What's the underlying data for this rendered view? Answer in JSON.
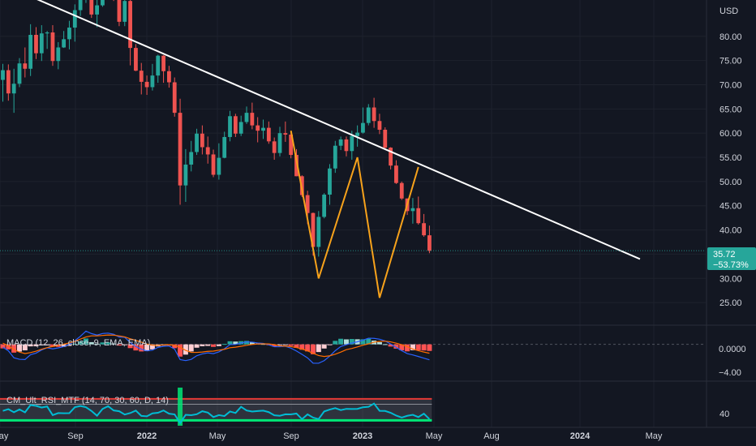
{
  "chart_data": {
    "type": "candlestick",
    "currency_label": "USD",
    "y_ticks": [
      25,
      30,
      35,
      40,
      45,
      50,
      55,
      60,
      65,
      70,
      75,
      80
    ],
    "y_tick_labels": [
      "25.00",
      "30.00",
      "35.00",
      "40.00",
      "45.00",
      "50.00",
      "55.00",
      "60.00",
      "65.00",
      "70.00",
      "75.00",
      "80.00"
    ],
    "ylim": [
      20.5,
      87.5
    ],
    "x_ticks": [
      {
        "label": "May",
        "bold": false
      },
      {
        "label": "Sep",
        "bold": false
      },
      {
        "label": "2022",
        "bold": true
      },
      {
        "label": "May",
        "bold": false
      },
      {
        "label": "Sep",
        "bold": false
      },
      {
        "label": "2023",
        "bold": true
      },
      {
        "label": "May",
        "bold": false
      },
      {
        "label": "Aug",
        "bold": false
      },
      {
        "label": "2024",
        "bold": true
      },
      {
        "label": "May",
        "bold": false
      }
    ],
    "last_price": "35.72",
    "last_change": "−53.73%",
    "trendline": {
      "start": [
        0,
        90.7
      ],
      "end": [
        115,
        34.0
      ]
    },
    "pattern": [
      [
        52,
        60.5
      ],
      [
        57,
        30.0
      ],
      [
        64,
        55.0
      ],
      [
        68,
        26.0
      ],
      [
        75,
        53.0
      ]
    ],
    "candles": [
      [
        0,
        71.0,
        73.0,
        66.5,
        74.3
      ],
      [
        1,
        73.0,
        68.2,
        66.7,
        74.2
      ],
      [
        2,
        68.2,
        70.2,
        64.2,
        73.3
      ],
      [
        3,
        70.2,
        74.4,
        69.5,
        75.5
      ],
      [
        4,
        74.4,
        73.3,
        71.5,
        77.7
      ],
      [
        5,
        73.3,
        80.3,
        71.8,
        82.5
      ],
      [
        6,
        80.3,
        76.5,
        75.3,
        81.9
      ],
      [
        7,
        76.5,
        80.6,
        74.9,
        82.3
      ],
      [
        8,
        80.6,
        80.8,
        77.4,
        81.1
      ],
      [
        9,
        80.8,
        74.9,
        73.9,
        82.3
      ],
      [
        10,
        74.9,
        77.7,
        73.2,
        78.8
      ],
      [
        11,
        77.7,
        79.4,
        77.6,
        81.1
      ],
      [
        12,
        79.4,
        81.8,
        77.3,
        83.2
      ],
      [
        13,
        81.8,
        85.4,
        78.9,
        86.6
      ],
      [
        14,
        85.4,
        88.7,
        84.2,
        89.5
      ],
      [
        15,
        88.7,
        93.6,
        86.9,
        95.0
      ],
      [
        16,
        93.6,
        84.5,
        83.8,
        95.1
      ],
      [
        17,
        84.5,
        86.4,
        81.9,
        89.1
      ],
      [
        18,
        86.4,
        91.8,
        86.1,
        93.7
      ],
      [
        19,
        91.8,
        91.0,
        90.0,
        93.0
      ],
      [
        20,
        91.0,
        87.6,
        87.3,
        92.9
      ],
      [
        21,
        87.6,
        83.0,
        82.1,
        89.0
      ],
      [
        22,
        83.0,
        87.3,
        82.1,
        87.6
      ],
      [
        23,
        87.3,
        77.6,
        74.0,
        88.0
      ],
      [
        24,
        77.6,
        72.9,
        72.8,
        78.4
      ],
      [
        25,
        72.9,
        70.6,
        68.0,
        74.5
      ],
      [
        26,
        70.6,
        69.5,
        67.9,
        71.9
      ],
      [
        27,
        69.5,
        71.9,
        68.8,
        74.3
      ],
      [
        28,
        71.9,
        76.0,
        70.4,
        76.2
      ],
      [
        29,
        76.0,
        72.8,
        70.4,
        76.1
      ],
      [
        30,
        72.8,
        70.5,
        69.4,
        73.9
      ],
      [
        31,
        70.5,
        64.2,
        63.4,
        71.5
      ],
      [
        32,
        64.2,
        49.2,
        45.2,
        67.1
      ],
      [
        33,
        49.2,
        53.5,
        45.8,
        56.7
      ],
      [
        34,
        53.5,
        56.1,
        52.1,
        58.4
      ],
      [
        35,
        56.1,
        59.9,
        55.5,
        60.9
      ],
      [
        36,
        59.9,
        57.1,
        55.6,
        61.6
      ],
      [
        37,
        57.1,
        55.6,
        53.7,
        59.3
      ],
      [
        38,
        55.6,
        51.4,
        50.9,
        56.6
      ],
      [
        39,
        51.4,
        54.9,
        50.4,
        57.9
      ],
      [
        40,
        54.9,
        59.2,
        54.8,
        60.3
      ],
      [
        41,
        59.2,
        63.5,
        58.3,
        64.6
      ],
      [
        42,
        63.5,
        59.9,
        59.2,
        64.0
      ],
      [
        43,
        59.9,
        62.3,
        59.4,
        63.6
      ],
      [
        44,
        62.3,
        64.2,
        61.9,
        65.5
      ],
      [
        45,
        64.2,
        61.6,
        60.8,
        66.3
      ],
      [
        46,
        61.6,
        60.5,
        58.1,
        63.3
      ],
      [
        47,
        60.5,
        61.1,
        58.8,
        62.8
      ],
      [
        48,
        61.1,
        58.3,
        57.8,
        62.4
      ],
      [
        49,
        58.3,
        55.9,
        54.5,
        59.1
      ],
      [
        50,
        55.9,
        60.0,
        55.2,
        61.3
      ],
      [
        51,
        60.0,
        59.7,
        58.2,
        62.4
      ],
      [
        52,
        59.7,
        55.5,
        54.8,
        60.2
      ],
      [
        53,
        55.5,
        51.1,
        51.1,
        56.7
      ],
      [
        54,
        51.1,
        47.2,
        46.8,
        51.3
      ],
      [
        55,
        47.2,
        43.5,
        41.2,
        48.1
      ],
      [
        56,
        43.5,
        36.5,
        34.7,
        43.6
      ],
      [
        57,
        36.5,
        42.7,
        34.5,
        43.9
      ],
      [
        58,
        42.7,
        47.3,
        42.4,
        47.6
      ],
      [
        59,
        47.3,
        52.7,
        45.2,
        53.6
      ],
      [
        60,
        52.7,
        57.4,
        51.8,
        58.4
      ],
      [
        61,
        57.4,
        58.7,
        56.5,
        59.3
      ],
      [
        62,
        58.7,
        56.3,
        55.2,
        59.3
      ],
      [
        63,
        56.3,
        59.4,
        54.5,
        60.5
      ],
      [
        64,
        59.4,
        60.1,
        57.2,
        61.6
      ],
      [
        65,
        60.1,
        62.1,
        59.9,
        65.3
      ],
      [
        66,
        62.1,
        65.3,
        61.6,
        66.0
      ],
      [
        67,
        65.3,
        62.5,
        61.1,
        67.3
      ],
      [
        68,
        62.5,
        60.7,
        59.8,
        64.0
      ],
      [
        69,
        60.7,
        57.0,
        56.8,
        61.2
      ],
      [
        70,
        57.0,
        53.3,
        52.5,
        57.1
      ],
      [
        71,
        53.3,
        49.7,
        49.5,
        54.4
      ],
      [
        72,
        49.7,
        46.5,
        46.2,
        50.0
      ],
      [
        73,
        46.5,
        43.9,
        43.1,
        46.5
      ],
      [
        74,
        43.9,
        44.5,
        41.3,
        46.6
      ],
      [
        75,
        44.5,
        41.4,
        41.1,
        46.9
      ],
      [
        76,
        41.4,
        38.9,
        38.6,
        43.3
      ],
      [
        77,
        38.9,
        35.7,
        35.2,
        40.9
      ]
    ],
    "macd": {
      "label": "MACD (12, 26, close, 9, EMA, EMA)",
      "zero_label": "0.0000",
      "neg_label": "−4.00",
      "ylim": [
        -6.0,
        3.0
      ],
      "histogram": [
        -0.69,
        -0.85,
        -1.41,
        -1.23,
        -1.02,
        -0.34,
        -0.33,
        -0.13,
        -0.03,
        -0.41,
        -0.43,
        -0.42,
        -0.26,
        0.09,
        0.49,
        1.0,
        0.38,
        0.12,
        0.33,
        0.33,
        0.15,
        -0.2,
        -0.07,
        -0.64,
        -1.04,
        -1.21,
        -1.16,
        -0.86,
        -0.35,
        -0.21,
        -0.22,
        -0.65,
        -2.09,
        -1.75,
        -1.21,
        -0.57,
        -0.32,
        -0.26,
        -0.43,
        -0.3,
        0.08,
        0.53,
        0.48,
        0.55,
        0.59,
        0.39,
        0.17,
        0.07,
        -0.14,
        -0.36,
        -0.14,
        -0.02,
        -0.26,
        -0.6,
        -0.92,
        -1.2,
        -1.69,
        -1.31,
        -0.71,
        -0.06,
        0.6,
        0.96,
        0.85,
        0.92,
        0.87,
        0.87,
        0.96,
        0.65,
        0.37,
        0.03,
        -0.37,
        -0.73,
        -1.02,
        -1.19,
        -1.0,
        -1.0,
        -1.04,
        -1.12
      ],
      "macd_line": [
        -0.49,
        -1.1,
        -2.29,
        -2.55,
        -2.59,
        -1.76,
        -1.49,
        -0.96,
        -0.58,
        -0.77,
        -0.6,
        -0.38,
        0.0,
        0.63,
        1.38,
        2.26,
        1.84,
        1.58,
        1.85,
        1.92,
        1.72,
        1.25,
        1.21,
        0.31,
        -0.36,
        -0.83,
        -1.11,
        -0.99,
        -0.51,
        -0.32,
        -0.28,
        -0.81,
        -2.6,
        -2.77,
        -2.56,
        -1.94,
        -1.63,
        -1.45,
        -1.58,
        -1.28,
        -0.76,
        -0.04,
        0.0,
        0.23,
        0.43,
        0.38,
        0.24,
        0.17,
        -0.07,
        -0.4,
        -0.4,
        -0.33,
        -0.64,
        -1.14,
        -1.71,
        -2.31,
        -3.21,
        -3.22,
        -2.78,
        -2.01,
        -1.08,
        -0.36,
        -0.05,
        0.22,
        0.44,
        0.73,
        1.05,
        1.03,
        0.88,
        0.58,
        0.06,
        -0.52,
        -1.08,
        -1.58,
        -1.8,
        -2.07,
        -2.35,
        -2.64
      ],
      "signal_line": [
        0.2,
        -0.26,
        -0.88,
        -1.32,
        -1.57,
        -1.41,
        -1.16,
        -0.83,
        -0.56,
        -0.36,
        -0.17,
        0.03,
        0.25,
        0.54,
        0.89,
        1.26,
        1.45,
        1.46,
        1.52,
        1.6,
        1.57,
        1.45,
        1.28,
        0.95,
        0.68,
        0.38,
        0.05,
        -0.13,
        -0.16,
        -0.11,
        -0.06,
        -0.16,
        -0.51,
        -1.02,
        -1.36,
        -1.37,
        -1.31,
        -1.19,
        -1.15,
        -0.99,
        -0.84,
        -0.57,
        -0.48,
        -0.32,
        -0.16,
        -0.01,
        0.07,
        0.1,
        0.07,
        -0.04,
        -0.26,
        -0.31,
        -0.38,
        -0.54,
        -0.79,
        -1.11,
        -1.52,
        -1.91,
        -2.07,
        -1.95,
        -1.68,
        -1.32,
        -0.9,
        -0.7,
        -0.43,
        -0.14,
        0.09,
        0.38,
        0.51,
        0.55,
        0.43,
        0.21,
        -0.06,
        -0.39,
        -0.8,
        -1.07,
        -1.31,
        -1.52
      ]
    },
    "rsi": {
      "label": "CM_Ult_RSI_MTF (14, 70, 30, 60, D, 14)",
      "tick_label": "40",
      "ylim": [
        20,
        100
      ],
      "overbought": 70,
      "oversold": 30,
      "mid": 60,
      "values": [
        47.7,
        50.8,
        45.1,
        50.3,
        44.9,
        58.5,
        57.0,
        53.9,
        55.8,
        39.7,
        43.5,
        43.3,
        43.4,
        54.4,
        56.8,
        54.4,
        47.5,
        38.6,
        51.3,
        56.4,
        48.5,
        47.0,
        40.8,
        43.6,
        48.2,
        38.3,
        37.6,
        43.1,
        44.1,
        48.4,
        42.4,
        41.1,
        25.0,
        40.3,
        39.6,
        41.4,
        47.0,
        44.5,
        36.1,
        39.7,
        38.0,
        46.5,
        43.7,
        55.2,
        48.4,
        46.4,
        47.4,
        48.1,
        45.3,
        39.4,
        38.5,
        41.3,
        41.1,
        42.7,
        32.2,
        41.2,
        35.1,
        32.4,
        46.6,
        50.1,
        52.8,
        49.1,
        51.4,
        51.2,
        51.3,
        54.4,
        55.2,
        61.3,
        47.7,
        47.5,
        44.1,
        38.9,
        35.1,
        38.5,
        40.3,
        36.1,
        42.4,
        32.4
      ],
      "highlight_bar_index": 32
    }
  }
}
